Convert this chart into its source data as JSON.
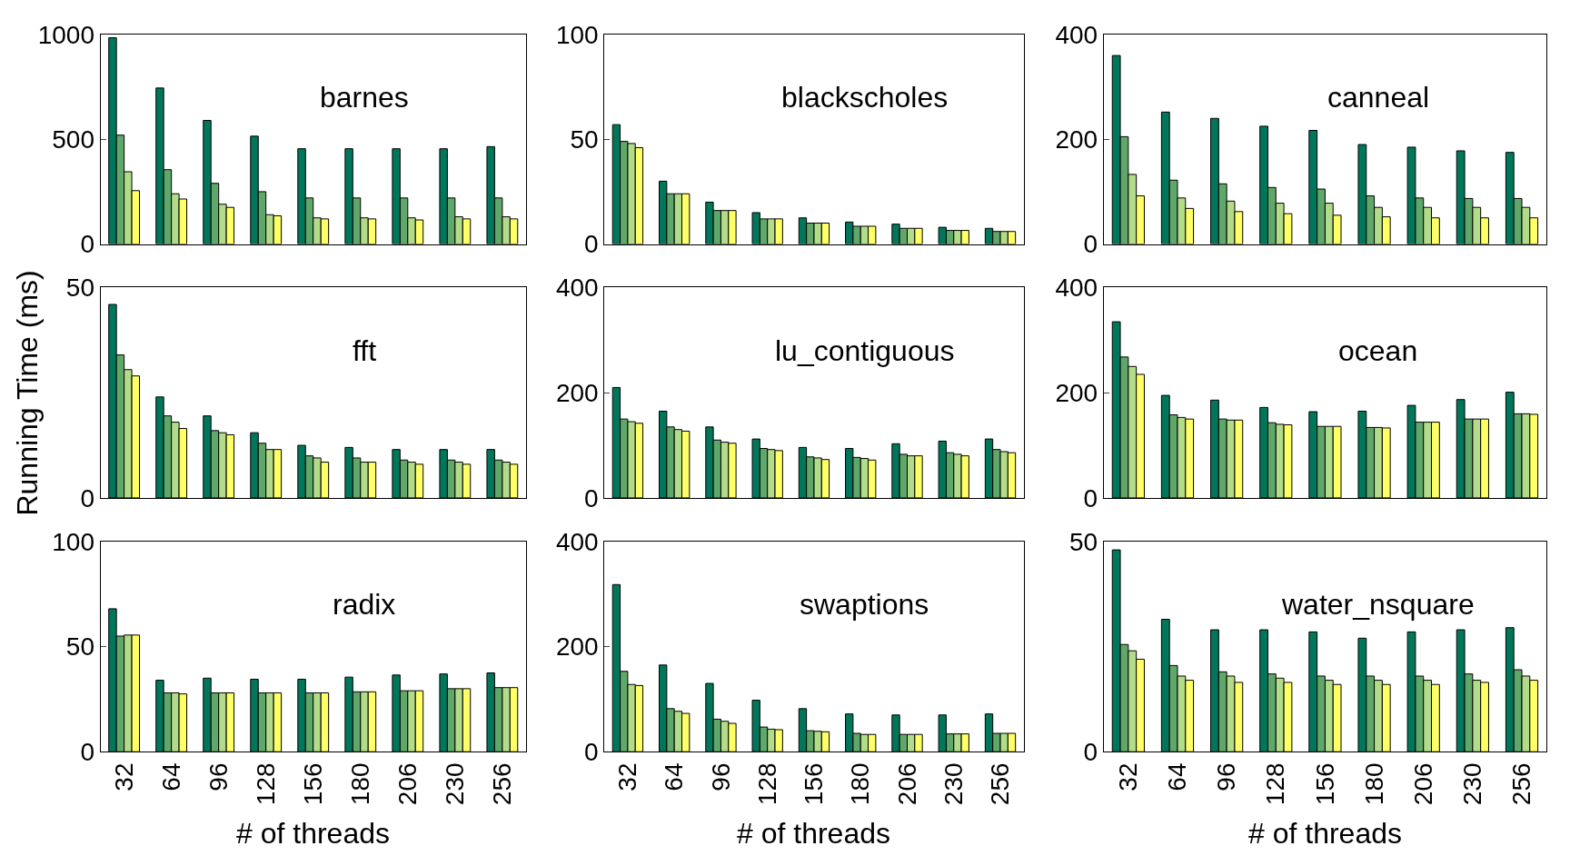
{
  "chart_data": [
    {
      "type": "bar",
      "title": "barnes",
      "categories": [
        "32",
        "64",
        "96",
        "128",
        "156",
        "180",
        "206",
        "230",
        "256"
      ],
      "ylim": [
        0,
        1000
      ],
      "yticks": [
        0,
        500,
        1000
      ],
      "tick_labels": "y",
      "series": [
        {
          "color": "#00775a",
          "values": [
            985,
            745,
            590,
            515,
            455,
            455,
            455,
            455,
            465
          ]
        },
        {
          "color": "#5fa86a",
          "values": [
            520,
            355,
            290,
            250,
            220,
            220,
            220,
            220,
            220
          ]
        },
        {
          "color": "#b2dc8a",
          "values": [
            345,
            240,
            190,
            140,
            125,
            125,
            125,
            130,
            130
          ]
        },
        {
          "color": "#ffff66",
          "values": [
            255,
            215,
            175,
            135,
            120,
            120,
            115,
            120,
            120
          ]
        }
      ]
    },
    {
      "type": "bar",
      "title": "blackscholes",
      "categories": [
        "32",
        "64",
        "96",
        "128",
        "156",
        "180",
        "206",
        "230",
        "256"
      ],
      "ylim": [
        0,
        100
      ],
      "yticks": [
        0,
        50,
        100
      ],
      "tick_labels": "y",
      "series": [
        {
          "color": "#00775a",
          "values": [
            57,
            30,
            20,
            15,
            12.5,
            10.5,
            9.5,
            8,
            7.5
          ]
        },
        {
          "color": "#5fa86a",
          "values": [
            49,
            24,
            16,
            12,
            10,
            8.5,
            7.5,
            6.5,
            6
          ]
        },
        {
          "color": "#b2dc8a",
          "values": [
            48,
            24,
            16,
            12,
            10,
            8.5,
            7.5,
            6.5,
            6
          ]
        },
        {
          "color": "#ffff66",
          "values": [
            46,
            24,
            16,
            12,
            10,
            8.5,
            7.5,
            6.5,
            6
          ]
        }
      ]
    },
    {
      "type": "bar",
      "title": "canneal",
      "categories": [
        "32",
        "64",
        "96",
        "128",
        "156",
        "180",
        "206",
        "230",
        "256"
      ],
      "ylim": [
        0,
        400
      ],
      "yticks": [
        0,
        200,
        400
      ],
      "tick_labels": "y",
      "series": [
        {
          "color": "#00775a",
          "values": [
            360,
            252,
            240,
            225,
            217,
            190,
            185,
            178,
            175
          ]
        },
        {
          "color": "#5fa86a",
          "values": [
            205,
            122,
            115,
            108,
            105,
            92,
            88,
            87,
            87
          ]
        },
        {
          "color": "#b2dc8a",
          "values": [
            133,
            88,
            82,
            78,
            78,
            70,
            70,
            70,
            70
          ]
        },
        {
          "color": "#ffff66",
          "values": [
            92,
            68,
            62,
            58,
            55,
            52,
            50,
            50,
            50
          ]
        }
      ]
    },
    {
      "type": "bar",
      "title": "fft",
      "ylabel": "Running Time (ms)",
      "categories": [
        "32",
        "64",
        "96",
        "128",
        "156",
        "180",
        "206",
        "230",
        "256"
      ],
      "ylim": [
        0,
        50
      ],
      "yticks": [
        0,
        50
      ],
      "tick_labels": "y",
      "series": [
        {
          "color": "#00775a",
          "values": [
            46,
            24,
            19.5,
            15.5,
            12.5,
            12,
            11.5,
            11.5,
            11.5
          ]
        },
        {
          "color": "#5fa86a",
          "values": [
            34,
            19.5,
            16,
            13,
            10,
            9.5,
            9,
            9,
            9
          ]
        },
        {
          "color": "#b2dc8a",
          "values": [
            30.5,
            18,
            15.5,
            11.5,
            9.5,
            8.5,
            8.5,
            8.5,
            8.5
          ]
        },
        {
          "color": "#ffff66",
          "values": [
            29,
            16.5,
            15,
            11.5,
            8.5,
            8.5,
            8,
            8,
            8
          ]
        }
      ]
    },
    {
      "type": "bar",
      "title": "lu_contiguous",
      "categories": [
        "32",
        "64",
        "96",
        "128",
        "156",
        "180",
        "206",
        "230",
        "256"
      ],
      "ylim": [
        0,
        400
      ],
      "yticks": [
        0,
        200,
        400
      ],
      "tick_labels": "y",
      "series": [
        {
          "color": "#00775a",
          "values": [
            210,
            165,
            135,
            112,
            96,
            94,
            103,
            108,
            112
          ]
        },
        {
          "color": "#5fa86a",
          "values": [
            150,
            135,
            110,
            94,
            78,
            77,
            83,
            86,
            92
          ]
        },
        {
          "color": "#b2dc8a",
          "values": [
            145,
            130,
            106,
            92,
            76,
            75,
            80,
            83,
            88
          ]
        },
        {
          "color": "#ffff66",
          "values": [
            142,
            127,
            104,
            90,
            73,
            72,
            80,
            80,
            86
          ]
        }
      ]
    },
    {
      "type": "bar",
      "title": "ocean",
      "categories": [
        "32",
        "64",
        "96",
        "128",
        "156",
        "180",
        "206",
        "230",
        "256"
      ],
      "ylim": [
        0,
        400
      ],
      "yticks": [
        0,
        200,
        400
      ],
      "tick_labels": "y",
      "series": [
        {
          "color": "#00775a",
          "values": [
            335,
            195,
            186,
            172,
            164,
            165,
            176,
            187,
            201
          ]
        },
        {
          "color": "#5fa86a",
          "values": [
            268,
            158,
            150,
            143,
            136,
            134,
            144,
            150,
            160
          ]
        },
        {
          "color": "#b2dc8a",
          "values": [
            250,
            153,
            148,
            140,
            136,
            134,
            144,
            150,
            160
          ]
        },
        {
          "color": "#ffff66",
          "values": [
            235,
            150,
            148,
            139,
            136,
            133,
            144,
            150,
            159
          ]
        }
      ]
    },
    {
      "type": "bar",
      "title": "radix",
      "xlabel": "# of threads",
      "categories": [
        "32",
        "64",
        "96",
        "128",
        "156",
        "180",
        "206",
        "230",
        "256"
      ],
      "ylim": [
        0,
        100
      ],
      "yticks": [
        0,
        50,
        100
      ],
      "series": [
        {
          "color": "#00775a",
          "values": [
            68,
            34,
            35,
            34.5,
            34.5,
            35.5,
            36.5,
            37,
            37.5
          ]
        },
        {
          "color": "#5fa86a",
          "values": [
            55,
            28,
            28,
            28,
            28,
            28.5,
            29,
            30,
            30.5
          ]
        },
        {
          "color": "#b2dc8a",
          "values": [
            55.5,
            28,
            28,
            28,
            28,
            28.5,
            29,
            30,
            30.5
          ]
        },
        {
          "color": "#ffff66",
          "values": [
            55.5,
            27.5,
            28,
            28,
            28,
            28.5,
            29,
            30,
            30.5
          ]
        }
      ]
    },
    {
      "type": "bar",
      "title": "swaptions",
      "xlabel": "# of threads",
      "categories": [
        "32",
        "64",
        "96",
        "128",
        "156",
        "180",
        "206",
        "230",
        "256"
      ],
      "ylim": [
        0,
        400
      ],
      "yticks": [
        0,
        200,
        400
      ],
      "series": [
        {
          "color": "#00775a",
          "values": [
            318,
            165,
            130,
            98,
            82,
            72,
            70,
            70,
            72
          ]
        },
        {
          "color": "#5fa86a",
          "values": [
            153,
            82,
            62,
            47,
            40,
            35,
            33,
            34,
            35
          ]
        },
        {
          "color": "#b2dc8a",
          "values": [
            128,
            77,
            58,
            43,
            39,
            33,
            33,
            34,
            35
          ]
        },
        {
          "color": "#ffff66",
          "values": [
            126,
            73,
            54,
            42,
            38,
            33,
            33,
            34,
            35
          ]
        }
      ]
    },
    {
      "type": "bar",
      "title": "water_nsquare",
      "xlabel": "# of threads",
      "categories": [
        "32",
        "64",
        "96",
        "128",
        "156",
        "180",
        "206",
        "230",
        "256"
      ],
      "ylim": [
        0,
        50
      ],
      "yticks": [
        0,
        50
      ],
      "series": [
        {
          "color": "#00775a",
          "values": [
            48,
            31.5,
            29,
            29,
            28.5,
            27,
            28.5,
            29,
            29.5
          ]
        },
        {
          "color": "#5fa86a",
          "values": [
            25.5,
            20.5,
            19,
            18.5,
            18,
            18,
            18,
            18.5,
            19.5
          ]
        },
        {
          "color": "#b2dc8a",
          "values": [
            24,
            18,
            18,
            17.5,
            17,
            17,
            17,
            17,
            18
          ]
        },
        {
          "color": "#ffff66",
          "values": [
            22,
            17,
            16.5,
            16.5,
            16,
            16,
            16,
            16.5,
            17
          ]
        }
      ]
    }
  ]
}
